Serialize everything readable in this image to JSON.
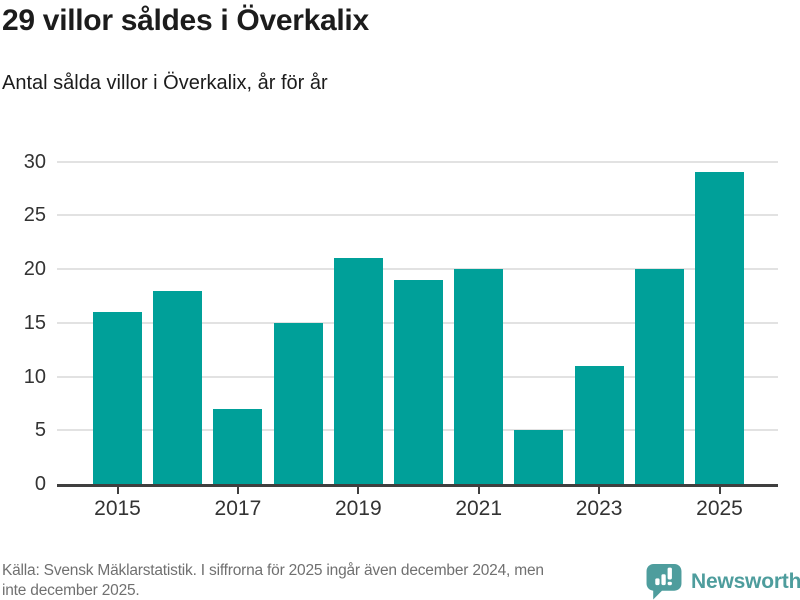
{
  "header": {
    "title": "29 villor såldes i Överkalix",
    "subtitle": "Antal sålda villor i Överkalix, år för år"
  },
  "chart_data": {
    "type": "bar",
    "title": "29 villor såldes i Överkalix",
    "subtitle": "Antal sålda villor i Överkalix, år för år",
    "categories": [
      "2015",
      "2016",
      "2017",
      "2018",
      "2019",
      "2020",
      "2021",
      "2022",
      "2023",
      "2024",
      "2025"
    ],
    "values": [
      16,
      18,
      7,
      15,
      21,
      19,
      20,
      5,
      11,
      20,
      29
    ],
    "xlabel": "",
    "ylabel": "",
    "ylim": [
      0,
      30
    ],
    "yticks": [
      0,
      5,
      10,
      15,
      20,
      25,
      30
    ],
    "xtick_labels": [
      "2015",
      "2017",
      "2019",
      "2021",
      "2023",
      "2025"
    ],
    "grid": "horizontal",
    "legend": "none",
    "bar_color": "#00a099"
  },
  "footer": {
    "source_line1": "Källa: Svensk Mäklarstatistik. I siffrorna för 2025 ingår även december 2024, men",
    "source_line2": "inte december 2025.",
    "brand": "Newsworthy"
  },
  "colors": {
    "bar": "#00a099",
    "axis": "#3f3f3f",
    "grid": "#e2e2e2",
    "tick_label": "#333333",
    "title": "#1c1c1c",
    "source_text": "#707070",
    "brand_teal": "#4e9d9d",
    "background": "#ffffff"
  }
}
